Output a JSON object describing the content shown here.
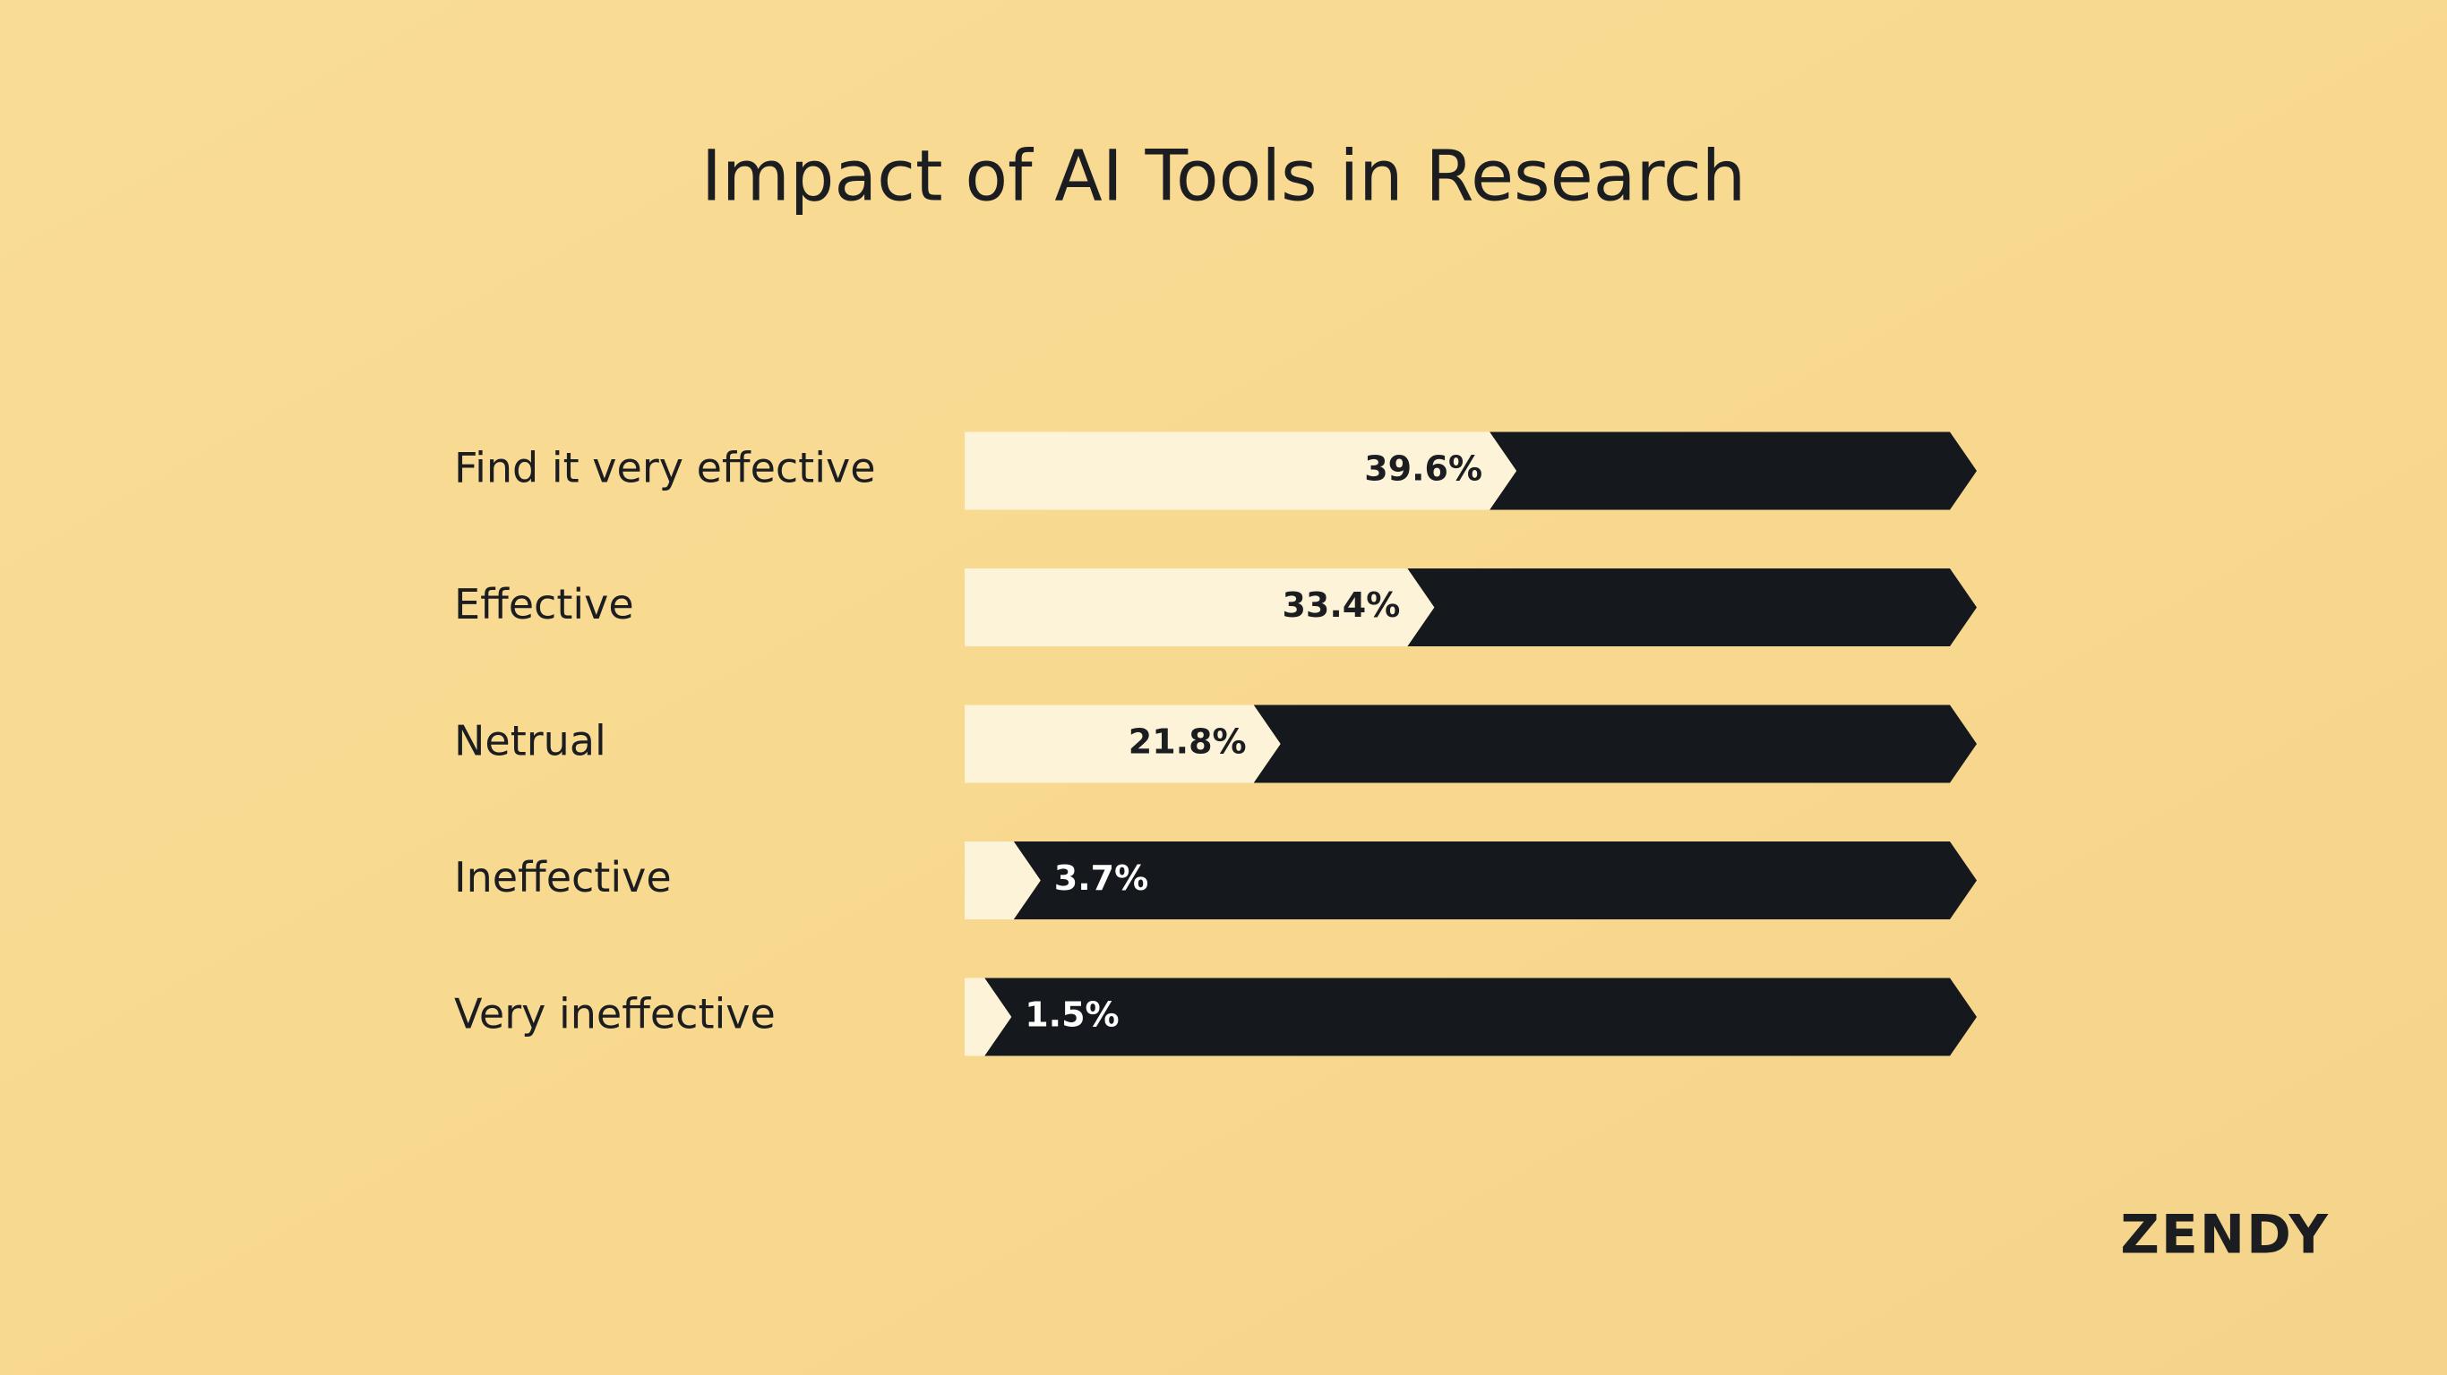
{
  "chart_data": {
    "type": "bar",
    "title": "Impact of AI Tools in Research",
    "categories": [
      "Find it very effective",
      "Effective",
      "Netrual",
      "Ineffective",
      "Very ineffective"
    ],
    "values": [
      39.6,
      33.4,
      21.8,
      3.7,
      1.5
    ],
    "value_labels": [
      "39.6%",
      "33.4%",
      "21.8%",
      "3.7%",
      "1.5%"
    ],
    "color": "#fdf3d8",
    "track_color": "#15181d",
    "xlim": [
      0,
      75
    ]
  },
  "logo": "ZENDY"
}
